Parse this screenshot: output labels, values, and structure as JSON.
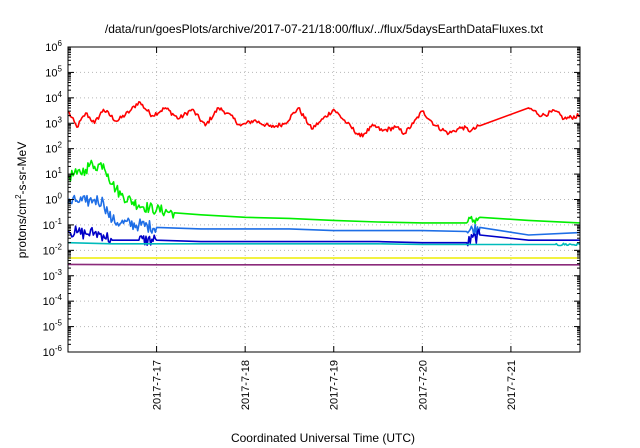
{
  "chart_data": {
    "type": "line",
    "title": "/data/run/goesPlots/archive/2017-07-21/18:00/flux/../flux/5daysEarthDataFluxes.txt",
    "xlabel": "Coordinated Universal Time (UTC)",
    "ylabel": {
      "pre": "protons/cm",
      "sup": "2",
      "post": "-s-sr-MeV"
    },
    "yscale": "log",
    "ylim": [
      1e-06,
      1000000.0
    ],
    "xlim": [
      16.0,
      21.78
    ],
    "grid": true,
    "y_ticks": [
      {
        "exp": "-6",
        "v": -6
      },
      {
        "exp": "-5",
        "v": -5
      },
      {
        "exp": "-4",
        "v": -4
      },
      {
        "exp": "-3",
        "v": -3
      },
      {
        "exp": "-2",
        "v": -2
      },
      {
        "exp": "-1",
        "v": -1
      },
      {
        "exp": "0",
        "v": 0
      },
      {
        "exp": "1",
        "v": 1
      },
      {
        "exp": "2",
        "v": 2
      },
      {
        "exp": "3",
        "v": 3
      },
      {
        "exp": "4",
        "v": 4
      },
      {
        "exp": "5",
        "v": 5
      },
      {
        "exp": "6",
        "v": 6
      }
    ],
    "y_tick_base": "10",
    "x_ticks": [
      {
        "label": "2017-7-17",
        "v": 17
      },
      {
        "label": "2017-7-18",
        "v": 18
      },
      {
        "label": "2017-7-19",
        "v": 19
      },
      {
        "label": "2017-7-20",
        "v": 20
      },
      {
        "label": "2017-7-21",
        "v": 21
      }
    ],
    "series": [
      {
        "color": "#ff0000",
        "x": [
          16.0,
          16.1,
          16.2,
          16.3,
          16.4,
          16.55,
          16.7,
          16.8,
          16.95,
          17.1,
          17.25,
          17.4,
          17.55,
          17.7,
          17.8,
          17.95,
          18.1,
          18.3,
          18.45,
          18.6,
          18.75,
          18.85,
          19.0,
          19.15,
          19.3,
          19.45,
          19.55,
          19.7,
          19.8,
          19.9,
          20.0,
          20.15,
          20.3,
          20.45,
          20.55,
          20.65,
          21.2,
          21.35,
          21.5,
          21.6,
          21.78
        ],
        "y": [
          3000,
          700,
          2500,
          1000,
          3500,
          1200,
          3000,
          7000,
          2000,
          4000,
          1500,
          3500,
          800,
          4000,
          2500,
          800,
          1300,
          700,
          1000,
          4000,
          600,
          1200,
          3500,
          1000,
          300,
          800,
          500,
          700,
          400,
          1000,
          3000,
          800,
          400,
          700,
          500,
          800,
          4000,
          2000,
          3000,
          1500,
          2000
        ]
      },
      {
        "color": "#00ee00",
        "x": [
          16.0,
          16.1,
          16.2,
          16.25,
          16.3,
          16.4,
          16.45,
          16.5,
          16.6,
          16.8,
          17.0,
          17.2,
          17.5,
          18.0,
          18.5,
          19.0,
          19.5,
          20.0,
          20.5,
          20.65,
          21.2,
          21.78
        ],
        "y": [
          8,
          10,
          15,
          25,
          20,
          25,
          10,
          4,
          1.5,
          0.6,
          0.4,
          0.3,
          0.25,
          0.2,
          0.18,
          0.15,
          0.13,
          0.12,
          0.12,
          0.2,
          0.15,
          0.12
        ]
      },
      {
        "color": "#1e6ee6",
        "x": [
          16.0,
          16.1,
          16.2,
          16.3,
          16.4,
          16.45,
          16.5,
          16.6,
          16.8,
          17.0,
          17.5,
          18.0,
          18.5,
          19.0,
          19.5,
          20.0,
          20.5,
          20.65,
          21.2,
          21.78
        ],
        "y": [
          0.7,
          0.9,
          0.8,
          1.0,
          0.8,
          0.3,
          0.15,
          0.12,
          0.1,
          0.08,
          0.07,
          0.07,
          0.07,
          0.06,
          0.06,
          0.06,
          0.055,
          0.08,
          0.04,
          0.05
        ]
      },
      {
        "color": "#0000c8",
        "x": [
          16.0,
          16.1,
          16.2,
          16.3,
          16.4,
          16.5,
          16.8,
          17.0,
          17.5,
          18.0,
          18.5,
          19.0,
          19.5,
          20.0,
          20.5,
          20.65,
          21.2,
          21.78
        ],
        "y": [
          0.06,
          0.05,
          0.045,
          0.05,
          0.04,
          0.025,
          0.025,
          0.025,
          0.022,
          0.022,
          0.022,
          0.022,
          0.022,
          0.02,
          0.02,
          0.04,
          0.025,
          0.025
        ]
      },
      {
        "color": "#00bbbb",
        "x": [
          16.0,
          16.5,
          17.0,
          17.5,
          18.0,
          18.5,
          19.0,
          19.5,
          20.0,
          20.5,
          21.0,
          21.5,
          21.78
        ],
        "y": [
          0.02,
          0.018,
          0.018,
          0.018,
          0.018,
          0.018,
          0.018,
          0.018,
          0.017,
          0.017,
          0.017,
          0.017,
          0.017
        ]
      },
      {
        "color": "#eeee00",
        "x": [
          16.0,
          17.0,
          18.0,
          19.0,
          20.0,
          21.0,
          21.78
        ],
        "y": [
          0.005,
          0.005,
          0.005,
          0.005,
          0.005,
          0.005,
          0.005
        ]
      },
      {
        "color": "#8b2a7a",
        "x": [
          16.0,
          17.0,
          18.0,
          19.0,
          20.0,
          21.0,
          21.78
        ],
        "y": [
          0.0028,
          0.0027,
          0.0027,
          0.0027,
          0.0027,
          0.0027,
          0.0027
        ]
      }
    ]
  }
}
